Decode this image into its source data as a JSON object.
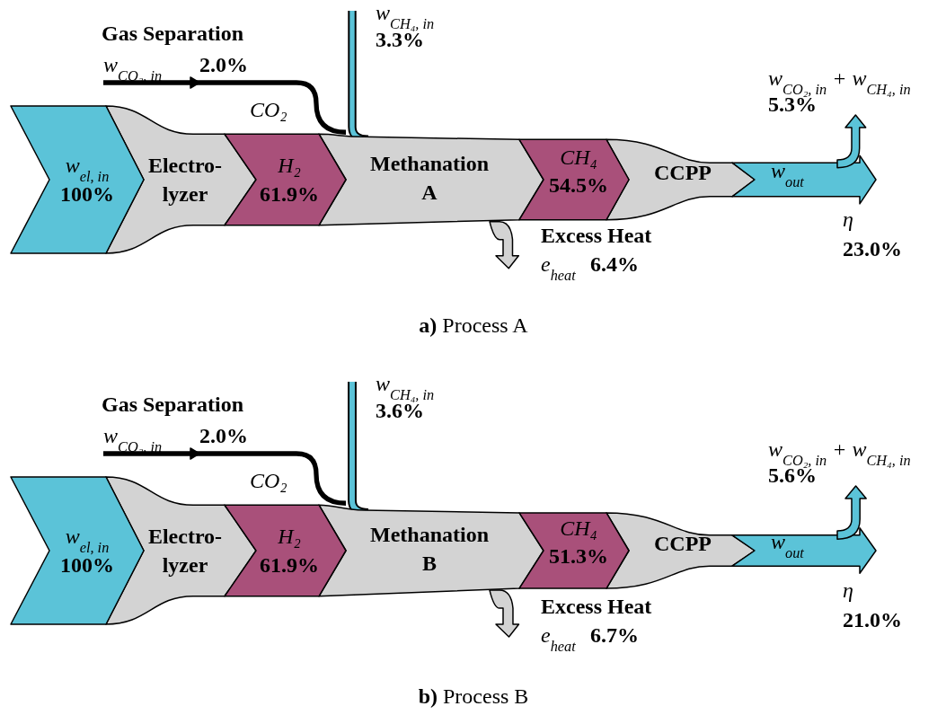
{
  "chart_data": [
    {
      "type": "other",
      "title": "a) Process A",
      "categories": [
        "w$_{el, in}$",
        "H₂",
        "CH₄",
        "η",
        "w$_{CO₂, in}$",
        "w$_{CH₄, in}$",
        "e$_{heat}$",
        "w$_{CO₂, in}$ + w$_{CH₄, in}$"
      ],
      "values": [
        100,
        61.9,
        54.5,
        23.0,
        2.0,
        3.3,
        6.4,
        5.3
      ],
      "value_labels": [
        "100%",
        "61.9%",
        "54.5%",
        "23.0%",
        "2.0%",
        "3.3%",
        "6.4%",
        "5.3%"
      ],
      "annotations": [
        "Gas Separation",
        "CO₂",
        "Electro-",
        "lyzer",
        "Methanation",
        "A",
        "CCPP",
        "w$_{out}$",
        "Excess Heat"
      ]
    },
    {
      "type": "other",
      "title": "b) Process B",
      "categories": [
        "w$_{el, in}$",
        "H₂",
        "CH₄",
        "η",
        "w$_{CO₂, in}$",
        "w$_{CH₄, in}$",
        "e$_{heat}$",
        "w$_{CO₂, in}$ + w$_{CH₄, in}$"
      ],
      "values": [
        100,
        61.9,
        51.3,
        21.0,
        2.0,
        3.6,
        6.7,
        5.6
      ],
      "value_labels": [
        "100%",
        "61.9%",
        "51.3%",
        "21.0%",
        "2.0%",
        "3.6%",
        "6.7%",
        "5.6%"
      ],
      "annotations": [
        "Gas Separation",
        "CO₂",
        "Electro-",
        "lyzer",
        "Methanation",
        "B",
        "CCPP",
        "w$_{out}$",
        "Excess Heat"
      ]
    }
  ]
}
